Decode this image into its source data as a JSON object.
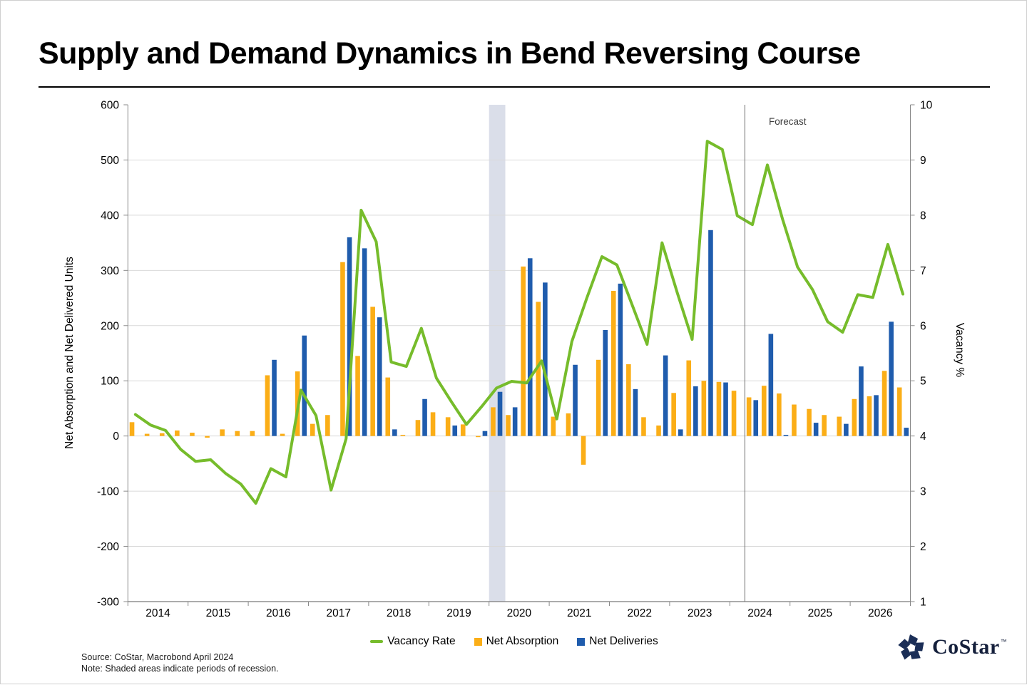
{
  "page": {
    "title": "Supply and Demand Dynamics in Bend Reversing Course",
    "footer": {
      "source_line": "Source: CoStar, Macrobond April 2024",
      "note_line": "Note: Shaded areas indicate periods of recession."
    },
    "logo_text": "CoStar",
    "logo_tm": "™"
  },
  "chart_data": {
    "type": "combo-bar-line",
    "title": "Supply and Demand Dynamics in Bend Reversing Course",
    "periodicity": "quarterly",
    "x_axis": {
      "years": [
        2014,
        2015,
        2016,
        2017,
        2018,
        2019,
        2020,
        2021,
        2022,
        2023,
        2024,
        2025,
        2026
      ]
    },
    "left_axis": {
      "title": "Net Absorption and Net Delivered Units",
      "min": -300,
      "max": 600,
      "step": 100,
      "ticks": [
        600,
        500,
        400,
        300,
        200,
        100,
        0,
        -100,
        -200,
        -300
      ]
    },
    "right_axis": {
      "title": "Vacancy %",
      "min": 1,
      "max": 10,
      "step": 1,
      "ticks": [
        10,
        9,
        8,
        7,
        6,
        5,
        4,
        3,
        2,
        1
      ]
    },
    "series": [
      {
        "name": "Vacancy Rate",
        "type": "line",
        "axis": "right",
        "color": "#76bc2b",
        "values": [
          4.39,
          4.2,
          4.1,
          3.76,
          3.54,
          3.57,
          3.32,
          3.13,
          2.78,
          3.41,
          3.26,
          4.83,
          4.37,
          3.02,
          3.95,
          8.09,
          7.52,
          5.34,
          5.26,
          5.95,
          5.05,
          4.62,
          4.21,
          4.53,
          4.87,
          4.99,
          4.96,
          5.36,
          4.31,
          5.71,
          6.5,
          7.25,
          7.1,
          6.38,
          5.66,
          7.5,
          6.6,
          5.75,
          9.34,
          9.19,
          7.99,
          7.83,
          8.91,
          7.93,
          7.06,
          6.65,
          6.07,
          5.88,
          6.56,
          6.51,
          7.47,
          6.57
        ]
      },
      {
        "name": "Net Absorption",
        "type": "bar",
        "axis": "left",
        "color": "#fbae17",
        "values": [
          25,
          4,
          5,
          10,
          6,
          -3,
          12,
          9,
          9,
          110,
          4,
          117,
          22,
          38,
          315,
          145,
          234,
          106,
          2,
          29,
          43,
          34,
          21,
          -2,
          52,
          38,
          307,
          243,
          35,
          41,
          -52,
          138,
          263,
          130,
          34,
          19,
          78,
          137,
          100,
          98,
          82,
          70,
          91,
          77,
          57,
          49,
          38,
          35,
          67,
          72,
          118,
          88
        ]
      },
      {
        "name": "Net Deliveries",
        "type": "bar",
        "axis": "left",
        "color": "#1f5cad",
        "values": [
          0,
          0,
          0,
          0,
          0,
          0,
          0,
          0,
          0,
          138,
          0,
          182,
          0,
          0,
          360,
          340,
          215,
          12,
          0,
          67,
          0,
          19,
          0,
          9,
          80,
          52,
          322,
          278,
          0,
          129,
          0,
          192,
          276,
          85,
          0,
          146,
          12,
          90,
          373,
          97,
          0,
          65,
          185,
          2,
          0,
          24,
          0,
          22,
          126,
          74,
          207,
          15
        ]
      }
    ],
    "annotations": {
      "forecast_label": "Forecast",
      "forecast_at_year": 2024.25
    },
    "recession_bands": [
      {
        "from_year": 2020.0,
        "to_year": 2020.27
      }
    ],
    "legend_position": "bottom-center",
    "grid": "horizontal",
    "colors": {
      "grid": "#d9d9d9",
      "axis": "#8a8a8a",
      "recession_band": "#dadeе8",
      "forecast_line": "#6e6e6e"
    }
  }
}
